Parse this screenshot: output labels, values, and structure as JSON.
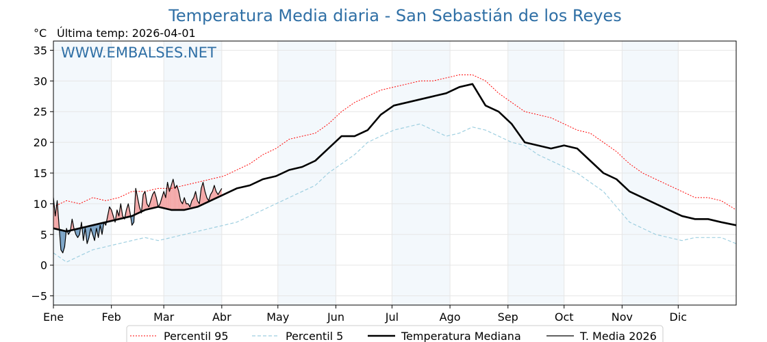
{
  "chart_data": {
    "type": "line",
    "title": "Temperatura Media diaria - San Sebastián de los Reyes",
    "unit": "°C",
    "last_reading": "Última temp: 2026-04-01",
    "watermark": "WWW.EMBALSES.NET",
    "ylim": [
      -6.5,
      36.5
    ],
    "yticks": [
      35,
      30,
      25,
      20,
      15,
      10,
      5,
      0,
      -5
    ],
    "ytick_labels": [
      "35",
      "30",
      "25",
      "20",
      "15",
      "10",
      "5",
      "0",
      "−5"
    ],
    "xlim": [
      1,
      366
    ],
    "months": [
      "Ene",
      "Feb",
      "Mar",
      "Abr",
      "May",
      "Jun",
      "Jul",
      "Ago",
      "Sep",
      "Oct",
      "Nov",
      "Dic"
    ],
    "month_start_days": [
      1,
      32,
      60,
      91,
      121,
      152,
      182,
      213,
      244,
      274,
      305,
      335
    ],
    "grid": true,
    "legend_position": "bottom-center",
    "series": [
      {
        "name": "Percentil 95",
        "color": "#ff0000",
        "style": "dotted",
        "x": [
          1,
          8,
          15,
          22,
          29,
          36,
          43,
          50,
          57,
          64,
          71,
          78,
          85,
          92,
          99,
          106,
          113,
          120,
          127,
          134,
          141,
          148,
          155,
          162,
          169,
          176,
          183,
          190,
          197,
          204,
          211,
          218,
          225,
          232,
          239,
          246,
          253,
          260,
          267,
          274,
          281,
          288,
          295,
          302,
          309,
          316,
          323,
          330,
          337,
          344,
          351,
          358,
          366
        ],
        "y": [
          9.5,
          10.5,
          10,
          11,
          10.5,
          11,
          12,
          12,
          12.5,
          12.5,
          13,
          13.5,
          14,
          14.5,
          15.5,
          16.5,
          18,
          19,
          20.5,
          21,
          21.5,
          23,
          25,
          26.5,
          27.5,
          28.5,
          29,
          29.5,
          30,
          30,
          30.5,
          31,
          31,
          30,
          28,
          26.5,
          25,
          24.5,
          24,
          23,
          22,
          21.5,
          20,
          18.5,
          16.5,
          15,
          14,
          13,
          12,
          11,
          11,
          10.5,
          9
        ]
      },
      {
        "name": "Percentil 5",
        "color": "#9ecfe0",
        "style": "dashed",
        "x": [
          1,
          8,
          15,
          22,
          29,
          36,
          43,
          50,
          57,
          64,
          71,
          78,
          85,
          92,
          99,
          106,
          113,
          120,
          127,
          134,
          141,
          148,
          155,
          162,
          169,
          176,
          183,
          190,
          197,
          204,
          211,
          218,
          225,
          232,
          239,
          246,
          253,
          260,
          267,
          274,
          281,
          288,
          295,
          302,
          309,
          316,
          323,
          330,
          337,
          344,
          351,
          358,
          366
        ],
        "y": [
          2,
          0.5,
          1.5,
          2.5,
          3,
          3.5,
          4,
          4.5,
          4,
          4.5,
          5,
          5.5,
          6,
          6.5,
          7,
          8,
          9,
          10,
          11,
          12,
          13,
          15,
          16.5,
          18,
          20,
          21,
          22,
          22.5,
          23,
          22,
          21,
          21.5,
          22.5,
          22,
          21,
          20,
          19.5,
          18,
          17,
          16,
          15,
          13.5,
          12,
          9.5,
          7,
          6,
          5,
          4.5,
          4,
          4.5,
          4.5,
          4.5,
          3.5
        ]
      },
      {
        "name": "Temperatura Mediana",
        "color": "#000000",
        "style": "solid-thick",
        "x": [
          1,
          8,
          15,
          22,
          29,
          36,
          43,
          50,
          57,
          64,
          71,
          78,
          85,
          92,
          99,
          106,
          113,
          120,
          127,
          134,
          141,
          148,
          155,
          162,
          169,
          176,
          183,
          190,
          197,
          204,
          211,
          218,
          225,
          232,
          239,
          246,
          253,
          260,
          267,
          274,
          281,
          288,
          295,
          302,
          309,
          316,
          323,
          330,
          337,
          344,
          351,
          358,
          366
        ],
        "y": [
          6,
          5.5,
          6,
          6.5,
          7,
          7.5,
          8,
          9,
          9.5,
          9,
          9,
          9.5,
          10.5,
          11.5,
          12.5,
          13,
          14,
          14.5,
          15.5,
          16,
          17,
          19,
          21,
          21,
          22,
          24.5,
          26,
          26.5,
          27,
          27.5,
          28,
          29,
          29.5,
          26,
          25,
          23,
          20,
          19.5,
          19,
          19.5,
          19,
          17,
          15,
          14,
          12,
          11,
          10,
          9,
          8,
          7.5,
          7.5,
          7,
          6.5
        ]
      },
      {
        "name": "T. Media 2026",
        "color": "#000000",
        "style": "solid-thin",
        "x": [
          1,
          2,
          3,
          4,
          5,
          6,
          7,
          8,
          9,
          10,
          11,
          12,
          13,
          14,
          15,
          16,
          17,
          18,
          19,
          20,
          21,
          22,
          23,
          24,
          25,
          26,
          27,
          28,
          29,
          30,
          31,
          32,
          33,
          34,
          35,
          36,
          37,
          38,
          39,
          40,
          41,
          42,
          43,
          44,
          45,
          46,
          47,
          48,
          49,
          50,
          51,
          52,
          53,
          54,
          55,
          56,
          57,
          58,
          59,
          60,
          61,
          62,
          63,
          64,
          65,
          66,
          67,
          68,
          69,
          70,
          71,
          72,
          73,
          74,
          75,
          76,
          77,
          78,
          79,
          80,
          81,
          82,
          83,
          84,
          85,
          86,
          87,
          88,
          89,
          90,
          91
        ],
        "y": [
          11,
          8,
          10.5,
          6.5,
          2.5,
          2,
          3,
          6,
          5,
          5.5,
          7.5,
          6,
          5,
          4.5,
          5,
          7,
          4,
          6,
          3.5,
          4.5,
          6,
          5,
          4,
          6,
          4.5,
          6.5,
          5,
          7,
          6.5,
          8,
          9.5,
          9,
          8,
          7,
          9,
          8,
          10,
          8,
          7.5,
          9,
          10,
          8.5,
          6.5,
          7,
          12.5,
          11,
          9.5,
          8.5,
          11.5,
          12,
          10,
          9.5,
          10.5,
          11.5,
          12,
          11,
          9.5,
          10,
          11,
          12,
          11,
          13.5,
          12,
          13,
          14,
          12.5,
          13,
          12,
          10.5,
          10,
          11,
          10,
          10,
          9.5,
          10.5,
          11,
          12,
          10.5,
          10,
          12.5,
          13.5,
          12,
          11,
          10.5,
          11.5,
          12,
          13,
          12,
          11.5,
          12,
          12.5
        ]
      }
    ]
  }
}
